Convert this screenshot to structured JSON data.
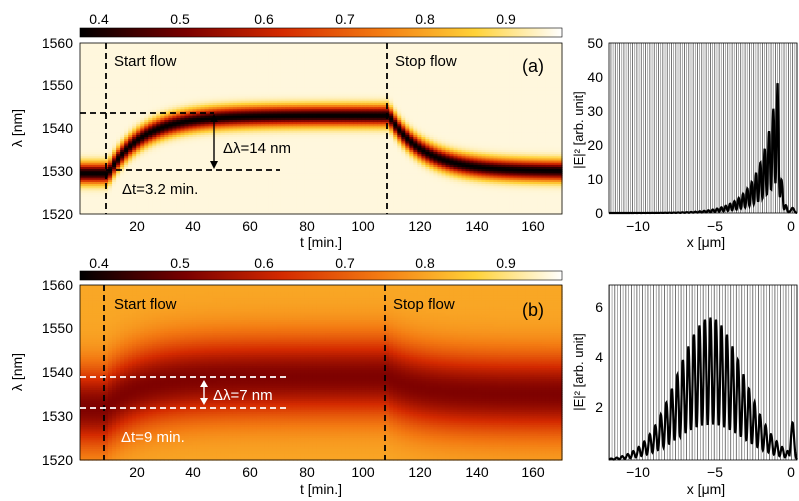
{
  "chart_data": [
    {
      "panel": "(a)",
      "type": "heatmap",
      "colorbar": {
        "ticks": [
          "0.4",
          "0.5",
          "0.6",
          "0.7",
          "0.8",
          "0.9"
        ],
        "range": [
          0.35,
          1.0
        ]
      },
      "x": {
        "label": "t [min.]",
        "range": [
          0,
          170
        ],
        "ticks": [
          "20",
          "40",
          "60",
          "80",
          "100",
          "120",
          "140",
          "160"
        ]
      },
      "y": {
        "label": "λ [nm]",
        "range": [
          1520,
          1560
        ],
        "ticks": [
          "1520",
          "1530",
          "1540",
          "1550",
          "1560"
        ]
      },
      "resonance": {
        "start_wl": 1529.5,
        "peak_wl": 1543,
        "end_wl": 1530,
        "width_nm": 2.2,
        "min_value": 0.35,
        "far_value": 0.98
      },
      "events": [
        {
          "t": 10,
          "label": "Start flow"
        },
        {
          "t": 109,
          "label": "Stop flow"
        }
      ],
      "annotations": {
        "delta_lambda": "Δλ=14 nm",
        "delta_t": "Δt=3.2 min.",
        "upper_line_wl": 1543.3,
        "lower_line_wl": 1529.5
      }
    },
    {
      "panel": "(b)",
      "type": "heatmap",
      "colorbar": {
        "ticks": [
          "0.4",
          "0.5",
          "0.6",
          "0.7",
          "0.8",
          "0.9"
        ],
        "range": [
          0.35,
          1.0
        ]
      },
      "x": {
        "label": "t [min.]",
        "range": [
          0,
          170
        ],
        "ticks": [
          "20",
          "40",
          "60",
          "80",
          "100",
          "120",
          "140",
          "160"
        ]
      },
      "y": {
        "label": "λ [nm]",
        "range": [
          1520,
          1560
        ],
        "ticks": [
          "1520",
          "1530",
          "1540",
          "1550",
          "1560"
        ]
      },
      "resonance": {
        "start_wl": 1532,
        "peak_wl": 1539,
        "end_wl": 1535,
        "width_nm": 9,
        "min_value": 0.5,
        "far_value": 0.82
      },
      "events": [
        {
          "t": 9,
          "label": "Start flow"
        },
        {
          "t": 108,
          "label": "Stop flow"
        }
      ],
      "annotations": {
        "delta_lambda": "Δλ=7 nm",
        "delta_t": "Δt=9 min.",
        "upper_line_wl": 1539,
        "lower_line_wl": 1532
      }
    },
    {
      "panel": "field-a",
      "type": "line",
      "x": {
        "label": "x [μm]",
        "range": [
          -12,
          0.6
        ],
        "ticks": [
          "−10",
          "−5",
          "0"
        ]
      },
      "y": {
        "label": "|E|² [arb. unit]",
        "range": [
          0,
          50
        ],
        "ticks": [
          "0",
          "10",
          "20",
          "30",
          "40",
          "50"
        ]
      },
      "series": [
        {
          "envelope": "exponential",
          "peak_x": -0.7,
          "peak_value": 39,
          "decay_um": 1.2,
          "period_um": 0.29,
          "tail_value": 1.5
        }
      ]
    },
    {
      "panel": "field-b",
      "type": "line",
      "x": {
        "label": "x [μm]",
        "range": [
          -12,
          0.6
        ],
        "ticks": [
          "−10",
          "−5",
          "0"
        ]
      },
      "y": {
        "label": "|E|² [arb. unit]",
        "range": [
          0,
          7
        ],
        "ticks": [
          "2",
          "4",
          "6"
        ]
      },
      "series": [
        {
          "envelope": "gaussian",
          "center_x": -5.2,
          "peak_value": 5.7,
          "sigma_um": 2.2,
          "period_um": 0.37,
          "tail_value": 1.5
        }
      ]
    }
  ]
}
